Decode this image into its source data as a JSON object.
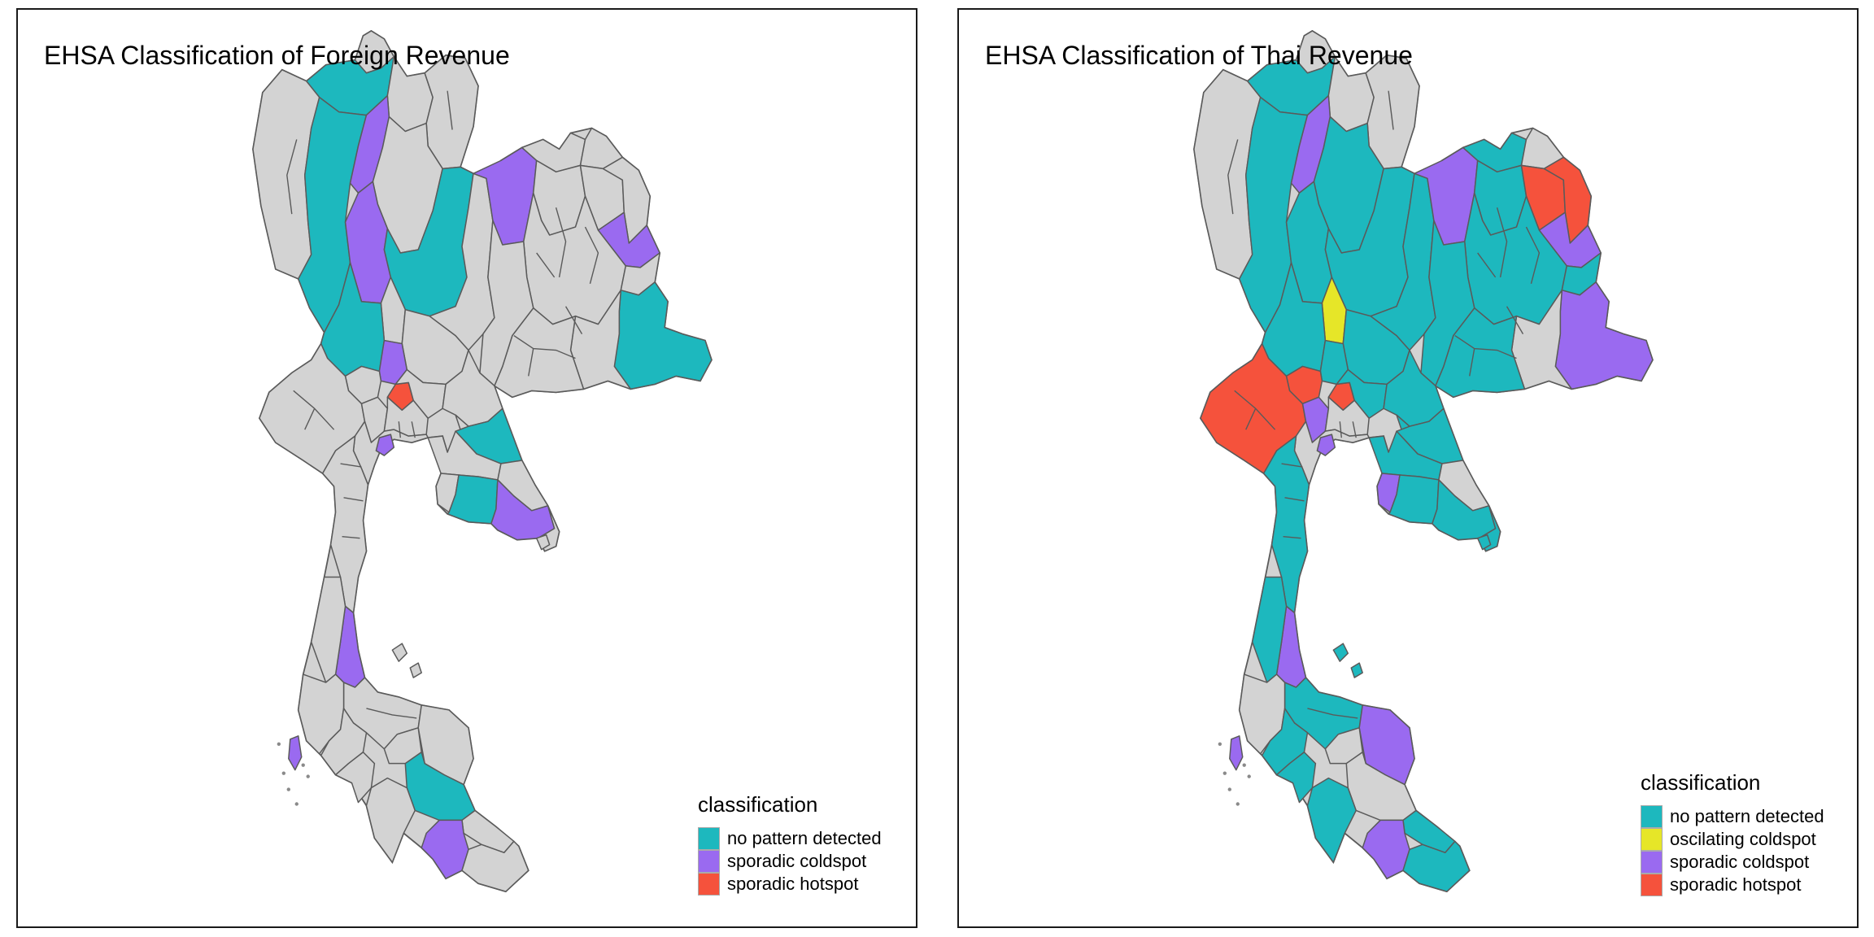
{
  "palette": {
    "no_pattern": "#1DB8BE",
    "oscilating_coldspot": "#E6E628",
    "sporadic_coldspot": "#9A6AF0",
    "sporadic_hotspot": "#F5523C",
    "none": "#D3D3D3",
    "map_border": "#5A5A5A"
  },
  "chart_data": [
    {
      "type": "choropleth-map",
      "title": "EHSA Classification of Foreign Revenue",
      "region": "Thailand provinces",
      "legend_title": "classification",
      "legend_entries": [
        "no pattern detected",
        "sporadic coldspot",
        "sporadic hotspot"
      ],
      "dominant_class": "none (gray)",
      "notes": "teal band in north (Chiang Mai/Chiang Rai/Tak), teal Phitsanulok, teal far-east Ubon, teal Prachinburi-Chachoengsao, teal Rayong coast, teal Songkhla; purple Lamphun, Uttaradit, Loei, Mukdahan, Chai Nat, Samut Sakhon, Chanthaburi, Chumphon, Phuket, Yala; single red hotspot Ang Thong"
    },
    {
      "type": "choropleth-map",
      "title": "EHSA Classification of Thai Revenue",
      "region": "Thailand provinces",
      "legend_title": "classification",
      "legend_entries": [
        "no pattern detected",
        "oscilating coldspot",
        "sporadic coldspot",
        "sporadic hotspot"
      ],
      "dominant_class": "no pattern detected (teal)",
      "notes": "mostly teal; red hotspots Sakon Nakhon/Nakhon Phanom (NE) and Kanchanaburi/Uthai Thani (W) plus Ang Thong; yellow oscilating coldspot Phichit; purple Lamphun, Loei, Mukdahan, Ubon, Suphan Buri, Chonburi, Chumphon, Phuket, Nakhon Si Thammarat, Yala; gray Mae Hong Son, Nan/Phayao, Bueng Kan, Si Sa Ket, Bangkok area, Sa Kaeo, Phang Nga, Songkhla"
    }
  ],
  "panels": [
    {
      "id": "foreign",
      "title": "EHSA Classification of Foreign Revenue",
      "legend": {
        "title": "classification",
        "items": [
          {
            "label": "no pattern detected",
            "key": "no_pattern"
          },
          {
            "label": "sporadic coldspot",
            "key": "sporadic_coldspot"
          },
          {
            "label": "sporadic hotspot",
            "key": "sporadic_hotspot"
          }
        ]
      },
      "classification": {
        "cri": "no_pattern",
        "cmi": "no_pattern",
        "tak": "no_pattern",
        "plk": "no_pattern",
        "ubn": "no_pattern",
        "pri": "no_pattern",
        "ryg": "no_pattern",
        "ska": "no_pattern",
        "lpn": "sporadic_coldspot",
        "utt": "sporadic_coldspot",
        "loe": "sporadic_coldspot",
        "mdh": "sporadic_coldspot",
        "cnt": "sporadic_coldspot",
        "ssn": "sporadic_coldspot",
        "cti": "sporadic_coldspot",
        "cpn": "sporadic_coldspot",
        "hkt": "sporadic_coldspot",
        "yla": "sporadic_coldspot",
        "atg": "sporadic_hotspot"
      }
    },
    {
      "id": "thai",
      "title": "EHSA Classification of Thai Revenue",
      "legend": {
        "title": "classification",
        "items": [
          {
            "label": "no pattern detected",
            "key": "no_pattern"
          },
          {
            "label": "oscilating coldspot",
            "key": "oscilating_coldspot"
          },
          {
            "label": "sporadic coldspot",
            "key": "sporadic_coldspot"
          },
          {
            "label": "sporadic hotspot",
            "key": "sporadic_hotspot"
          }
        ]
      },
      "classification": {
        "cri": "no_pattern",
        "cmi": "no_pattern",
        "lpg": "no_pattern",
        "utt": "no_pattern",
        "plk": "no_pattern",
        "nsn": "no_pattern",
        "pbn": "no_pattern",
        "tak": "no_pattern",
        "nki": "no_pattern",
        "udn": "no_pattern",
        "kkn": "no_pattern",
        "yst": "no_pattern",
        "cpm": "no_pattern",
        "srn": "no_pattern",
        "cnt": "no_pattern",
        "lri": "no_pattern",
        "sri": "no_pattern",
        "nyk": "no_pattern",
        "pri": "no_pattern",
        "cco": "no_pattern",
        "ryg": "no_pattern",
        "cti": "no_pattern",
        "trt": "no_pattern",
        "rbr": "no_pattern",
        "rng": "no_pattern",
        "sni": "no_pattern",
        "kbi": "no_pattern",
        "trg": "no_pattern",
        "stn": "no_pattern",
        "ptn": "no_pattern",
        "nwt": "no_pattern",
        "isl_samui": "no_pattern",
        "isl_phangan": "no_pattern",
        "isl_chang": "no_pattern",
        "pct": "oscilating_coldspot",
        "lpn": "sporadic_coldspot",
        "loe": "sporadic_coldspot",
        "mdh": "sporadic_coldspot",
        "ubn": "sporadic_coldspot",
        "spb": "sporadic_coldspot",
        "ssn": "sporadic_coldspot",
        "cbi": "sporadic_coldspot",
        "cpn": "sporadic_coldspot",
        "hkt": "sporadic_coldspot",
        "nrt": "sporadic_coldspot",
        "yla": "sporadic_coldspot",
        "snk": "sporadic_hotspot",
        "npm": "sporadic_hotspot",
        "uti": "sporadic_hotspot",
        "kri": "sporadic_hotspot",
        "atg": "sporadic_hotspot"
      }
    }
  ]
}
